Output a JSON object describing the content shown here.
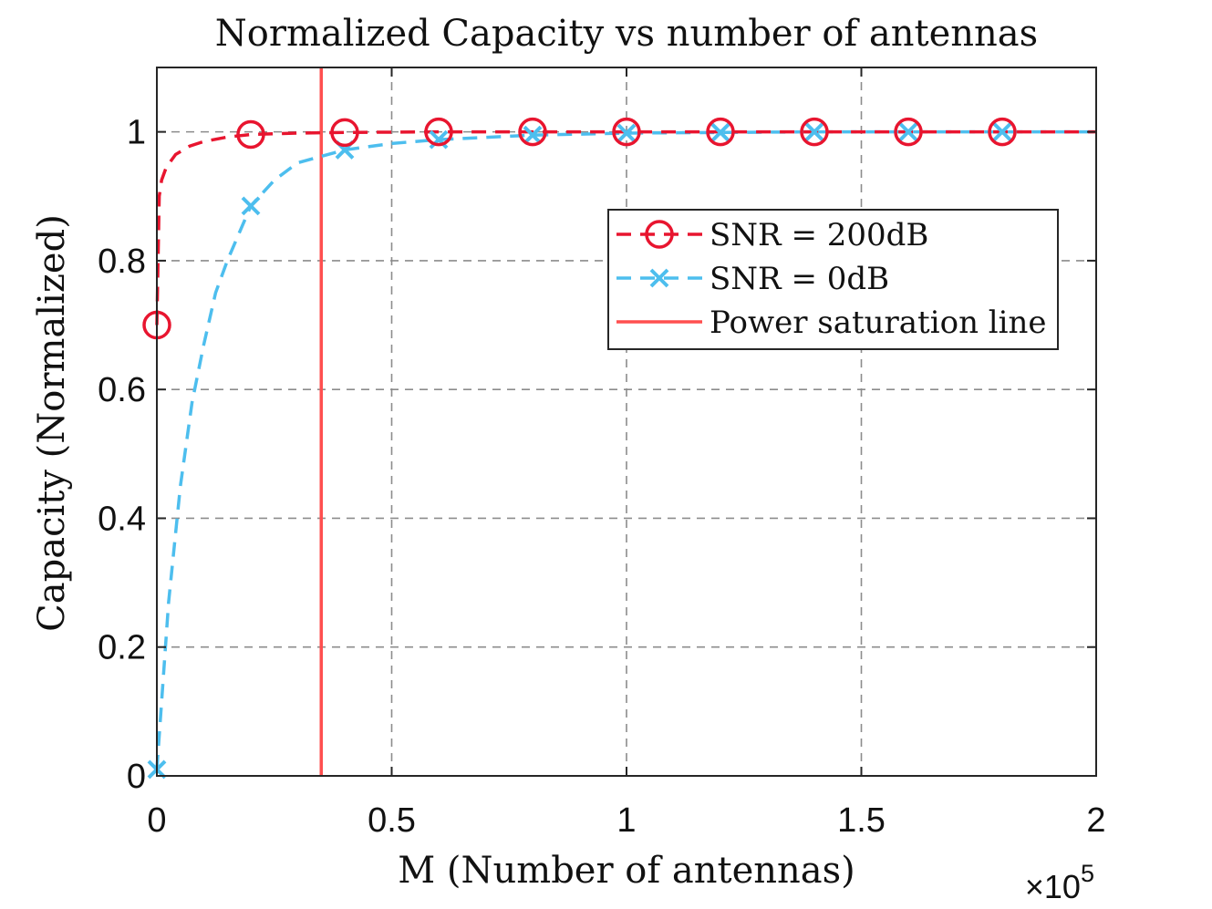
{
  "chart_data": {
    "type": "line",
    "title": "Normalized Capacity vs number of antennas",
    "xlabel": "M (Number of antennas)",
    "ylabel": "Capacity (Normalized)",
    "x_exponent_prefix": "×10",
    "x_exponent_power": "5",
    "xlim": [
      0,
      200000
    ],
    "ylim": [
      0,
      1.1
    ],
    "xticks": [
      0,
      50000,
      100000,
      150000,
      200000
    ],
    "xtick_labels": [
      "0",
      "0.5",
      "1",
      "1.5",
      "2"
    ],
    "yticks": [
      0,
      0.2,
      0.4,
      0.6,
      0.8,
      1
    ],
    "ytick_labels": [
      "0",
      "0.2",
      "0.4",
      "0.6",
      "0.8",
      "1"
    ],
    "grid": true,
    "legend_position": "top-right",
    "series": [
      {
        "name": "SNR = 200dB",
        "color": "#e8152f",
        "line_style": "dashed",
        "marker": "circle",
        "x": [
          1,
          500,
          1000,
          2000,
          4000,
          7000,
          10000,
          15000,
          20000,
          30000,
          40000,
          60000,
          80000,
          100000,
          120000,
          140000,
          160000,
          180000,
          200000
        ],
        "y": [
          0.7,
          0.9,
          0.925,
          0.945,
          0.965,
          0.978,
          0.985,
          0.992,
          0.996,
          0.998,
          0.999,
          1.0,
          1.0,
          1.0,
          1.0,
          1.0,
          1.0,
          1.0,
          1.0
        ],
        "marker_x": [
          1,
          20000,
          40000,
          60000,
          80000,
          100000,
          120000,
          140000,
          160000,
          180000
        ],
        "marker_y": [
          0.7,
          0.996,
          0.999,
          1.0,
          1.0,
          1.0,
          1.0,
          1.0,
          1.0,
          1.0
        ]
      },
      {
        "name": "SNR = 0dB",
        "color": "#4dbeee",
        "line_style": "dashed",
        "marker": "x",
        "x": [
          1,
          2500,
          5000,
          7500,
          10000,
          12500,
          15000,
          20000,
          25000,
          30000,
          40000,
          50000,
          60000,
          80000,
          100000,
          120000,
          140000,
          160000,
          180000,
          200000
        ],
        "y": [
          0.01,
          0.27,
          0.45,
          0.58,
          0.67,
          0.75,
          0.8,
          0.885,
          0.925,
          0.952,
          0.972,
          0.982,
          0.988,
          0.995,
          0.998,
          0.999,
          1.0,
          1.0,
          1.0,
          1.0
        ],
        "marker_x": [
          1,
          20000,
          40000,
          60000,
          80000,
          100000,
          120000,
          140000,
          160000,
          180000
        ],
        "marker_y": [
          0.01,
          0.885,
          0.972,
          0.988,
          0.995,
          0.998,
          0.999,
          1.0,
          1.0,
          1.0
        ]
      }
    ],
    "reference_lines": [
      {
        "name": "Power saturation line",
        "orientation": "vertical",
        "x": 35000,
        "color": "#ff4f4f"
      }
    ]
  }
}
